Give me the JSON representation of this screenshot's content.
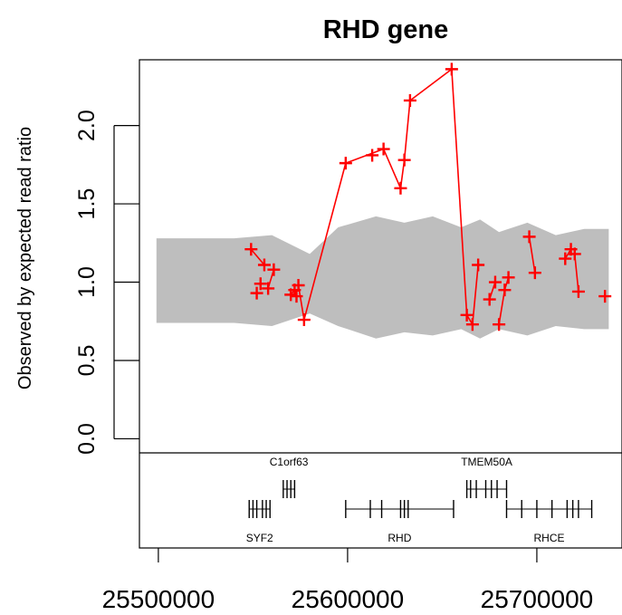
{
  "chart_data": {
    "type": "scatter",
    "title": "RHD gene",
    "ylabel": "Observed by expected read ratio",
    "xlabel": "",
    "xlim": [
      25490000,
      25745000
    ],
    "ylim": [
      -0.09,
      2.42
    ],
    "y_ticks": [
      0.0,
      0.5,
      1.0,
      1.5,
      2.0
    ],
    "y_tick_labels": [
      "0.0",
      "0.5",
      "1.0",
      "1.5",
      "2.0"
    ],
    "x_ticks": [
      25500000,
      25600000,
      25700000
    ],
    "x_tick_labels": [
      "25500000",
      "25600000",
      "25700000"
    ],
    "colors": {
      "points": "#ff0000",
      "band": "#bebebe",
      "axes": "#000000"
    },
    "confidence_band": {
      "x": [
        25499000,
        25540000,
        25560000,
        25580000,
        25595000,
        25615000,
        25630000,
        25645000,
        25660000,
        25670000,
        25680000,
        25695000,
        25710000,
        25725000,
        25738000
      ],
      "upper": [
        1.28,
        1.28,
        1.3,
        1.18,
        1.35,
        1.42,
        1.38,
        1.42,
        1.35,
        1.4,
        1.32,
        1.38,
        1.3,
        1.34,
        1.34
      ],
      "lower": [
        0.74,
        0.74,
        0.72,
        0.8,
        0.72,
        0.64,
        0.68,
        0.66,
        0.7,
        0.64,
        0.7,
        0.66,
        0.72,
        0.7,
        0.7
      ]
    },
    "points": {
      "x": [
        25549000,
        25552000,
        25554000,
        25556000,
        25558000,
        25561000,
        25570000,
        25572000,
        25574000,
        25573000,
        25577000,
        25599000,
        25613000,
        25619000,
        25628000,
        25630000,
        25633000,
        25655000,
        25663000,
        25666000,
        25669000,
        25675000,
        25678000,
        25680000,
        25683000,
        25685000,
        25696000,
        25699000,
        25715000,
        25718000,
        25720000,
        25722000,
        25736000
      ],
      "y": [
        1.21,
        0.93,
        0.99,
        1.11,
        0.96,
        1.08,
        0.92,
        0.95,
        0.98,
        0.91,
        0.76,
        1.76,
        1.81,
        1.85,
        1.6,
        1.78,
        2.16,
        2.36,
        0.79,
        0.73,
        1.11,
        0.89,
        1.0,
        0.73,
        0.95,
        1.03,
        1.29,
        1.06,
        1.15,
        1.21,
        1.18,
        0.94,
        0.91
      ],
      "line_segments": [
        [
          0,
          3
        ],
        [
          4,
          5
        ],
        [
          6,
          7
        ],
        [
          8,
          10
        ],
        [
          10,
          11
        ],
        [
          11,
          13
        ],
        [
          13,
          14
        ],
        [
          14,
          15
        ],
        [
          15,
          16
        ],
        [
          16,
          17
        ],
        [
          17,
          18
        ],
        [
          18,
          19
        ],
        [
          19,
          20
        ],
        [
          21,
          22
        ],
        [
          23,
          24
        ],
        [
          24,
          25
        ],
        [
          26,
          27
        ],
        [
          28,
          29
        ],
        [
          30,
          31
        ]
      ]
    },
    "genes": [
      {
        "name": "SYF2",
        "label_pos": "below",
        "track": 1,
        "start": 25548000,
        "end": 25559000,
        "exons": [
          25548000,
          25550000,
          25552000,
          25555000,
          25557000,
          25559000
        ]
      },
      {
        "name": "C1orf63",
        "label_pos": "above",
        "track": 0,
        "start": 25566000,
        "end": 25572000,
        "exons": [
          25566000,
          25568000,
          25570000,
          25572000
        ]
      },
      {
        "name": "RHD",
        "label_pos": "below",
        "track": 1,
        "start": 25599000,
        "end": 25656000,
        "exons": [
          25599000,
          25612000,
          25618000,
          25628000,
          25630000,
          25632000,
          25656000
        ]
      },
      {
        "name": "TMEM50A",
        "label_pos": "above",
        "track": 0,
        "start": 25663000,
        "end": 25684000,
        "exons": [
          25663000,
          25665000,
          25668000,
          25673000,
          25676000,
          25679000,
          25684000
        ]
      },
      {
        "name": "RHCE",
        "label_pos": "below",
        "track": 1,
        "start": 25684000,
        "end": 25729000,
        "exons": [
          25684000,
          25692000,
          25700000,
          25708000,
          25716000,
          25719000,
          25722000,
          25729000
        ]
      }
    ]
  }
}
